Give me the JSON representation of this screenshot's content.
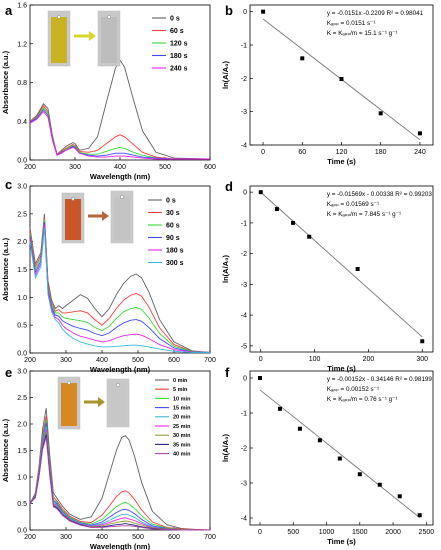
{
  "figure": {
    "panels": [
      {
        "letter": "a"
      },
      {
        "letter": "b"
      },
      {
        "letter": "c"
      },
      {
        "letter": "d"
      },
      {
        "letter": "e"
      },
      {
        "letter": "f"
      }
    ]
  },
  "colors": {
    "grey": "#606060",
    "red": "#ff3b3b",
    "green": "#33dd33",
    "blue": "#3b4bff",
    "magenta": "#ee22ee",
    "cyan": "#33bbdd",
    "olive": "#999933",
    "navy": "#222288",
    "purple": "#aa44aa",
    "black": "#000000",
    "fit_line": "#7a7a7a"
  },
  "chart_data": [
    {
      "id": "a",
      "type": "line",
      "xlabel": "Wavelength (nm)",
      "ylabel": "Absorbance (a.u.)",
      "xlim": [
        200,
        600
      ],
      "ylim": [
        0,
        1.6
      ],
      "xticks": [
        200,
        300,
        400,
        500,
        600
      ],
      "yticks": [
        0.0,
        0.4,
        0.8,
        1.2,
        1.6
      ],
      "yticklabels": [
        "0.0",
        "0.4",
        "0.8",
        "1.2",
        "1.6"
      ],
      "legend_position": "top-right",
      "x": [
        200,
        215,
        230,
        240,
        250,
        260,
        270,
        280,
        295,
        300,
        310,
        330,
        350,
        370,
        390,
        400,
        410,
        430,
        450,
        480,
        520,
        600
      ],
      "series": [
        {
          "name": "0 s",
          "color": "#606060",
          "values": [
            0.4,
            0.46,
            0.58,
            0.53,
            0.25,
            0.06,
            0.1,
            0.14,
            0.18,
            0.17,
            0.1,
            0.12,
            0.24,
            0.6,
            0.95,
            1.03,
            0.96,
            0.62,
            0.3,
            0.08,
            0.02,
            0.01
          ]
        },
        {
          "name": "60 s",
          "color": "#ff3b3b",
          "values": [
            0.4,
            0.45,
            0.56,
            0.5,
            0.23,
            0.06,
            0.09,
            0.12,
            0.16,
            0.15,
            0.09,
            0.08,
            0.1,
            0.17,
            0.24,
            0.26,
            0.24,
            0.16,
            0.08,
            0.03,
            0.01,
            0.01
          ]
        },
        {
          "name": "120 s",
          "color": "#33dd33",
          "values": [
            0.39,
            0.44,
            0.54,
            0.48,
            0.22,
            0.05,
            0.08,
            0.11,
            0.15,
            0.14,
            0.08,
            0.06,
            0.06,
            0.09,
            0.12,
            0.13,
            0.12,
            0.08,
            0.05,
            0.02,
            0.01,
            0.01
          ]
        },
        {
          "name": "180 s",
          "color": "#3b4bff",
          "values": [
            0.39,
            0.43,
            0.52,
            0.46,
            0.21,
            0.05,
            0.08,
            0.1,
            0.14,
            0.13,
            0.07,
            0.05,
            0.04,
            0.05,
            0.07,
            0.07,
            0.07,
            0.05,
            0.03,
            0.02,
            0.01,
            0.01
          ]
        },
        {
          "name": "240 s",
          "color": "#ee22ee",
          "values": [
            0.38,
            0.42,
            0.5,
            0.44,
            0.2,
            0.05,
            0.07,
            0.1,
            0.13,
            0.12,
            0.07,
            0.04,
            0.03,
            0.03,
            0.04,
            0.04,
            0.04,
            0.03,
            0.02,
            0.01,
            0.01,
            0.01
          ]
        }
      ]
    },
    {
      "id": "b",
      "type": "scatter",
      "xlabel": "Time (s)",
      "ylabel": "ln(A/A₀)",
      "xlim": [
        -20,
        260
      ],
      "ylim": [
        -4,
        0.2
      ],
      "xticks": [
        0,
        60,
        120,
        180,
        240
      ],
      "yticks": [
        0,
        -1,
        -2,
        -3,
        -4
      ],
      "points": [
        [
          0,
          0
        ],
        [
          60,
          -1.4
        ],
        [
          120,
          -2.02
        ],
        [
          180,
          -3.05
        ],
        [
          240,
          -3.65
        ]
      ],
      "fit": {
        "slope": -0.0151,
        "intercept": -0.2209
      },
      "annotations": [
        "y = -0.0151x -0.2209  R² = 0.98041",
        "Kₐₚₚ = 0.0151 s⁻¹",
        "K = Kₐₚₚ/m = 15.1 s⁻¹ g⁻¹"
      ]
    },
    {
      "id": "c",
      "type": "line",
      "xlabel": "Wavelength (nm)",
      "ylabel": "Absorbance (a.u.)",
      "xlim": [
        200,
        700
      ],
      "ylim": [
        0,
        3.0
      ],
      "xticks": [
        200,
        300,
        400,
        500,
        600,
        700
      ],
      "yticks": [
        0.0,
        0.5,
        1.0,
        1.5,
        2.0,
        2.5,
        3.0
      ],
      "yticklabels": [
        "0.0",
        "0.5",
        "1.0",
        "1.5",
        "2.0",
        "2.5",
        "3.0"
      ],
      "legend_position": "top-right",
      "x": [
        200,
        215,
        230,
        240,
        250,
        260,
        270,
        280,
        290,
        300,
        320,
        340,
        360,
        380,
        400,
        420,
        440,
        460,
        480,
        495,
        510,
        530,
        560,
        600,
        650,
        700
      ],
      "series": [
        {
          "name": "0 s",
          "color": "#606060",
          "values": [
            2.25,
            1.6,
            1.8,
            2.5,
            1.3,
            0.95,
            0.8,
            0.85,
            0.8,
            0.85,
            0.95,
            1.05,
            0.98,
            0.8,
            0.65,
            0.8,
            1.05,
            1.25,
            1.38,
            1.42,
            1.35,
            1.1,
            0.6,
            0.2,
            0.04,
            0.01
          ]
        },
        {
          "name": "30 s",
          "color": "#ff3b3b",
          "values": [
            2.2,
            1.55,
            1.75,
            2.45,
            1.25,
            0.9,
            0.75,
            0.78,
            0.72,
            0.72,
            0.74,
            0.76,
            0.72,
            0.6,
            0.5,
            0.62,
            0.8,
            0.95,
            1.04,
            1.07,
            1.02,
            0.83,
            0.45,
            0.15,
            0.03,
            0.01
          ]
        },
        {
          "name": "60 s",
          "color": "#33dd33",
          "values": [
            2.15,
            1.5,
            1.7,
            2.4,
            1.2,
            0.86,
            0.72,
            0.72,
            0.65,
            0.62,
            0.6,
            0.58,
            0.55,
            0.46,
            0.4,
            0.48,
            0.62,
            0.74,
            0.8,
            0.82,
            0.78,
            0.63,
            0.35,
            0.12,
            0.03,
            0.01
          ]
        },
        {
          "name": "90 s",
          "color": "#3b4bff",
          "values": [
            2.1,
            1.45,
            1.65,
            2.35,
            1.15,
            0.82,
            0.68,
            0.66,
            0.58,
            0.54,
            0.48,
            0.44,
            0.41,
            0.35,
            0.31,
            0.36,
            0.46,
            0.54,
            0.59,
            0.6,
            0.57,
            0.46,
            0.26,
            0.09,
            0.02,
            0.01
          ]
        },
        {
          "name": "180 s",
          "color": "#ee22ee",
          "values": [
            2.05,
            1.4,
            1.6,
            2.3,
            1.1,
            0.78,
            0.64,
            0.6,
            0.5,
            0.44,
            0.36,
            0.3,
            0.27,
            0.23,
            0.2,
            0.22,
            0.27,
            0.31,
            0.33,
            0.34,
            0.32,
            0.26,
            0.15,
            0.06,
            0.02,
            0.01
          ]
        },
        {
          "name": "300 s",
          "color": "#33bbdd",
          "values": [
            2.0,
            1.35,
            1.55,
            2.25,
            1.05,
            0.74,
            0.6,
            0.54,
            0.43,
            0.36,
            0.26,
            0.2,
            0.16,
            0.13,
            0.11,
            0.11,
            0.12,
            0.13,
            0.14,
            0.14,
            0.13,
            0.11,
            0.07,
            0.03,
            0.01,
            0.01
          ]
        }
      ]
    },
    {
      "id": "d",
      "type": "scatter",
      "xlabel": "Time (s)",
      "ylabel": "ln(A/A₀)",
      "xlim": [
        -20,
        320
      ],
      "ylim": [
        -5.2,
        0.2
      ],
      "xticks": [
        0,
        100,
        200,
        300
      ],
      "yticks": [
        0,
        -1,
        -2,
        -3,
        -4,
        -5
      ],
      "points": [
        [
          0,
          0
        ],
        [
          30,
          -0.55
        ],
        [
          60,
          -1.0
        ],
        [
          90,
          -1.45
        ],
        [
          180,
          -2.5
        ],
        [
          300,
          -4.85
        ]
      ],
      "fit": {
        "slope": -0.01569,
        "intercept": -0.00338
      },
      "annotations": [
        "y = -0.01569x - 0.00338  R² = 0.99203",
        "Kₐₚₚ = 0.01569 s⁻¹",
        "K = Kₐₚₚ/m = 7.845 s⁻¹ g⁻¹"
      ]
    },
    {
      "id": "e",
      "type": "line",
      "xlabel": "Wavelength (nm)",
      "ylabel": "Absorbance (a.u.)",
      "xlim": [
        200,
        700
      ],
      "ylim": [
        0,
        3.0
      ],
      "xticks": [
        200,
        300,
        400,
        500,
        600,
        700
      ],
      "yticks": [
        0.0,
        0.5,
        1.0,
        1.5,
        2.0,
        2.5,
        3.0
      ],
      "yticklabels": [
        "0.0",
        "0.5",
        "1.0",
        "1.5",
        "2.0",
        "2.5",
        "3.0"
      ],
      "legend_position": "top-right",
      "x": [
        200,
        215,
        225,
        235,
        245,
        255,
        265,
        275,
        290,
        310,
        340,
        370,
        400,
        420,
        440,
        455,
        465,
        475,
        490,
        510,
        540,
        580,
        620,
        660,
        700
      ],
      "series": [
        {
          "name": "0 min",
          "color": "#606060",
          "values": [
            0.5,
            0.7,
            1.2,
            1.9,
            2.3,
            1.4,
            0.7,
            0.6,
            0.45,
            0.3,
            0.2,
            0.25,
            0.6,
            1.05,
            1.5,
            1.75,
            1.78,
            1.7,
            1.4,
            0.9,
            0.35,
            0.1,
            0.03,
            0.01,
            0.0
          ]
        },
        {
          "name": "5 min",
          "color": "#ff3b3b",
          "values": [
            0.5,
            0.68,
            1.15,
            1.8,
            2.15,
            1.3,
            0.62,
            0.55,
            0.4,
            0.26,
            0.16,
            0.14,
            0.28,
            0.45,
            0.63,
            0.72,
            0.74,
            0.7,
            0.58,
            0.38,
            0.15,
            0.05,
            0.02,
            0.01,
            0.0
          ]
        },
        {
          "name": "10 min",
          "color": "#33dd33",
          "values": [
            0.5,
            0.67,
            1.12,
            1.75,
            2.08,
            1.25,
            0.58,
            0.52,
            0.37,
            0.24,
            0.14,
            0.11,
            0.2,
            0.32,
            0.44,
            0.5,
            0.52,
            0.49,
            0.41,
            0.27,
            0.11,
            0.04,
            0.01,
            0.0,
            0.0
          ]
        },
        {
          "name": "15 min",
          "color": "#3b4bff",
          "values": [
            0.5,
            0.66,
            1.1,
            1.7,
            2.02,
            1.2,
            0.55,
            0.5,
            0.35,
            0.22,
            0.13,
            0.09,
            0.15,
            0.24,
            0.33,
            0.38,
            0.39,
            0.37,
            0.31,
            0.2,
            0.08,
            0.03,
            0.01,
            0.0,
            0.0
          ]
        },
        {
          "name": "20 min",
          "color": "#33bbdd",
          "values": [
            0.5,
            0.65,
            1.08,
            1.66,
            1.96,
            1.16,
            0.52,
            0.48,
            0.33,
            0.21,
            0.12,
            0.08,
            0.12,
            0.18,
            0.25,
            0.29,
            0.3,
            0.28,
            0.24,
            0.15,
            0.06,
            0.02,
            0.01,
            0.0,
            0.0
          ]
        },
        {
          "name": "25 min",
          "color": "#ee22ee",
          "values": [
            0.5,
            0.64,
            1.06,
            1.62,
            1.9,
            1.12,
            0.5,
            0.46,
            0.31,
            0.2,
            0.11,
            0.07,
            0.1,
            0.14,
            0.19,
            0.22,
            0.23,
            0.21,
            0.18,
            0.12,
            0.05,
            0.02,
            0.01,
            0.0,
            0.0
          ]
        },
        {
          "name": "30 min",
          "color": "#999933",
          "values": [
            0.5,
            0.63,
            1.04,
            1.58,
            1.85,
            1.08,
            0.48,
            0.44,
            0.3,
            0.19,
            0.1,
            0.06,
            0.08,
            0.11,
            0.14,
            0.16,
            0.17,
            0.16,
            0.13,
            0.09,
            0.04,
            0.02,
            0.01,
            0.0,
            0.0
          ]
        },
        {
          "name": "35 min",
          "color": "#222288",
          "values": [
            0.5,
            0.62,
            1.02,
            1.55,
            1.8,
            1.05,
            0.46,
            0.42,
            0.29,
            0.18,
            0.1,
            0.05,
            0.06,
            0.08,
            0.1,
            0.11,
            0.12,
            0.11,
            0.09,
            0.06,
            0.03,
            0.01,
            0.0,
            0.0,
            0.0
          ]
        },
        {
          "name": "40 min",
          "color": "#aa44aa",
          "values": [
            0.5,
            0.61,
            1.0,
            1.52,
            1.75,
            1.02,
            0.44,
            0.4,
            0.28,
            0.17,
            0.09,
            0.05,
            0.05,
            0.06,
            0.07,
            0.08,
            0.08,
            0.08,
            0.07,
            0.05,
            0.02,
            0.01,
            0.0,
            0.0,
            0.0
          ]
        }
      ]
    },
    {
      "id": "f",
      "type": "scatter",
      "xlabel": "Time (s)",
      "ylabel": "ln(A/A₀)",
      "xlim": [
        -150,
        2600
      ],
      "ylim": [
        -4.2,
        0.2
      ],
      "xticks": [
        0,
        500,
        1000,
        1500,
        2000,
        2500
      ],
      "yticks": [
        0,
        -1,
        -2,
        -3,
        -4
      ],
      "points": [
        [
          0,
          0
        ],
        [
          300,
          -0.88
        ],
        [
          600,
          -1.45
        ],
        [
          900,
          -1.78
        ],
        [
          1200,
          -2.3
        ],
        [
          1500,
          -2.75
        ],
        [
          1800,
          -3.05
        ],
        [
          2100,
          -3.38
        ],
        [
          2400,
          -3.92
        ]
      ],
      "fit": {
        "slope": -0.00152,
        "intercept": -0.34146
      },
      "annotations": [
        "y = -0.00152x - 0.34146  R² = 0.98199",
        "Kₐₚₚ = 0.00152 s⁻¹",
        "K = Kₐₚₚ/m = 0.76 s⁻¹ g⁻¹"
      ]
    }
  ]
}
